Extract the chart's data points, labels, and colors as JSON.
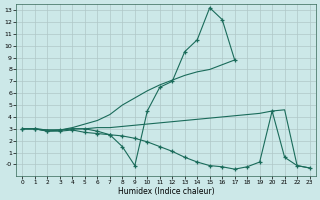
{
  "xlabel": "Humidex (Indice chaleur)",
  "bg_color": "#cce8e8",
  "grid_color": "#b0c8c8",
  "line_color": "#1a6b5a",
  "xlim": [
    -0.5,
    23.5
  ],
  "ylim": [
    -1.0,
    13.5
  ],
  "xticks": [
    0,
    1,
    2,
    3,
    4,
    5,
    6,
    7,
    8,
    9,
    10,
    11,
    12,
    13,
    14,
    15,
    16,
    17,
    18,
    19,
    20,
    21,
    22,
    23
  ],
  "yticks": [
    0,
    1,
    2,
    3,
    4,
    5,
    6,
    7,
    8,
    9,
    10,
    11,
    12,
    13
  ],
  "ytick_labels": [
    "-0",
    "1",
    "2",
    "3",
    "4",
    "5",
    "6",
    "7",
    "8",
    "9",
    "10",
    "11",
    "12",
    "13"
  ],
  "line1_x": [
    0,
    1,
    2,
    3,
    4,
    5,
    6,
    7,
    8,
    9,
    10,
    11,
    12,
    13,
    14,
    15,
    16,
    17
  ],
  "line1_y": [
    3.0,
    3.0,
    2.8,
    2.9,
    3.0,
    3.0,
    2.8,
    2.5,
    1.5,
    -0.1,
    4.5,
    6.5,
    7.0,
    9.5,
    10.5,
    13.2,
    12.2,
    8.8
  ],
  "line2_x": [
    0,
    1,
    2,
    3,
    4,
    5,
    6,
    7,
    8,
    9,
    10,
    11,
    12,
    13,
    14,
    15,
    16,
    17
  ],
  "line2_y": [
    3.0,
    3.0,
    2.9,
    2.9,
    3.1,
    3.4,
    3.7,
    4.2,
    5.0,
    5.6,
    6.2,
    6.7,
    7.1,
    7.5,
    7.8,
    8.0,
    8.4,
    8.8
  ],
  "line3_x": [
    0,
    1,
    2,
    3,
    4,
    5,
    6,
    7,
    8,
    9,
    10,
    11,
    12,
    13,
    14,
    15,
    16,
    17,
    18,
    19,
    20,
    21,
    22,
    23
  ],
  "line3_y": [
    3.0,
    3.0,
    2.8,
    2.8,
    2.9,
    2.7,
    2.6,
    2.5,
    2.4,
    2.2,
    1.9,
    1.5,
    1.1,
    0.6,
    0.2,
    -0.1,
    -0.2,
    -0.4,
    -0.2,
    0.2,
    4.5,
    0.6,
    -0.1,
    -0.3
  ],
  "line4_x": [
    0,
    1,
    2,
    3,
    4,
    5,
    6,
    7,
    8,
    9,
    10,
    11,
    12,
    13,
    14,
    15,
    16,
    17,
    18,
    19,
    20,
    21,
    22,
    23
  ],
  "line4_y": [
    3.0,
    3.0,
    2.9,
    2.9,
    3.0,
    3.0,
    3.1,
    3.1,
    3.2,
    3.3,
    3.4,
    3.5,
    3.6,
    3.7,
    3.8,
    3.9,
    4.0,
    4.1,
    4.2,
    4.3,
    4.5,
    4.6,
    -0.1,
    -0.3
  ]
}
